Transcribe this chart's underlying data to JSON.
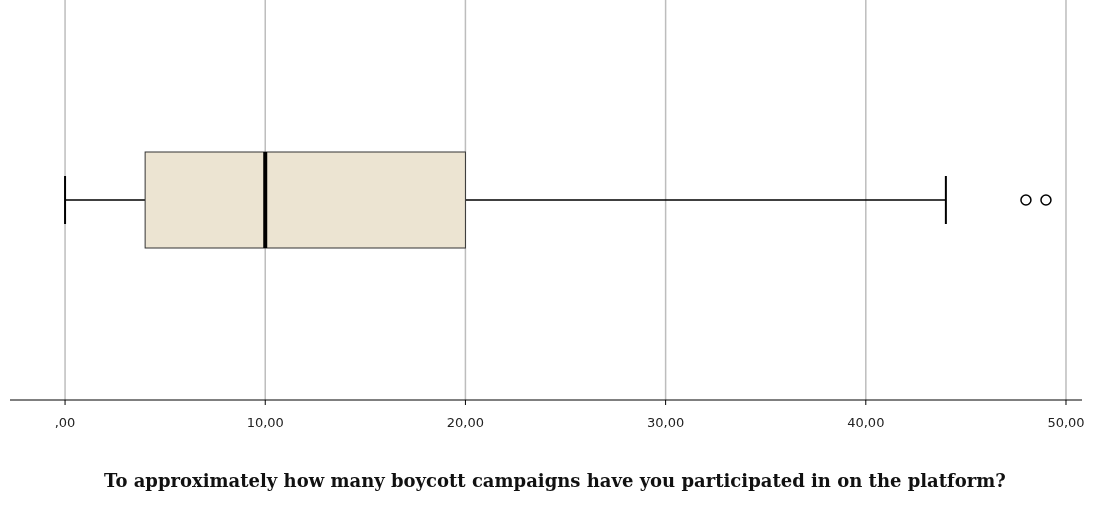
{
  "chart_data": {
    "type": "box",
    "orientation": "horizontal",
    "categories": [
      null
    ],
    "color": "#ece4d2",
    "boxes": [
      {
        "low": 0,
        "q1": 4,
        "median": 10,
        "q3": 20,
        "high": 44,
        "outliers": [
          48,
          49
        ]
      }
    ],
    "xlim": [
      -2.75,
      50.8
    ],
    "xticks": [
      {
        "value": 0,
        "label": ",00"
      },
      {
        "value": 10,
        "label": "10,00"
      },
      {
        "value": 20,
        "label": "20,00"
      },
      {
        "value": 30,
        "label": "30,00"
      },
      {
        "value": 40,
        "label": "40,00"
      },
      {
        "value": 50,
        "label": "50,00"
      }
    ],
    "grid": "x",
    "xlabel": "To approximately how many boycott campaigns have you participated in on the platform?"
  }
}
